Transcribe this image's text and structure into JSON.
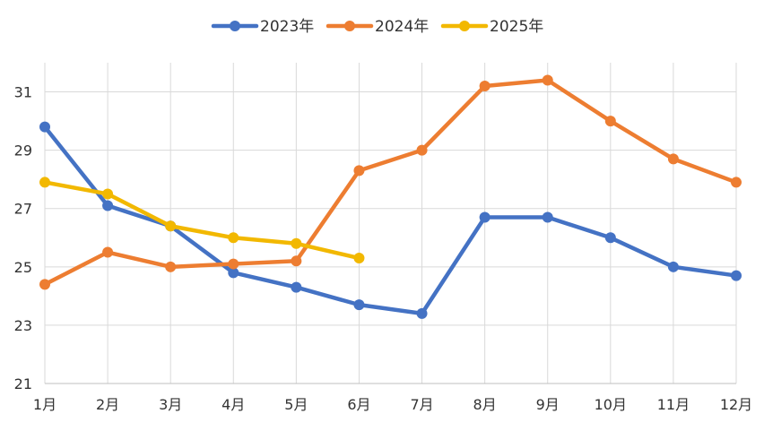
{
  "chart_data": {
    "type": "line",
    "categories": [
      "1月",
      "2月",
      "3月",
      "4月",
      "5月",
      "6月",
      "7月",
      "8月",
      "9月",
      "10月",
      "11月",
      "12月"
    ],
    "series": [
      {
        "name": "2023年",
        "color": "#4472c4",
        "values": [
          29.8,
          27.1,
          26.4,
          24.8,
          24.3,
          23.7,
          23.4,
          26.7,
          26.7,
          26.0,
          25.0,
          24.7
        ]
      },
      {
        "name": "2024年",
        "color": "#ed7d31",
        "values": [
          24.4,
          25.5,
          25.0,
          25.1,
          25.2,
          28.3,
          29.0,
          31.2,
          31.4,
          30.0,
          28.7,
          27.9
        ]
      },
      {
        "name": "2025年",
        "color": "#f2b800",
        "values": [
          27.9,
          27.5,
          26.4,
          26.0,
          25.8,
          25.3,
          null,
          null,
          null,
          null,
          null,
          null
        ]
      }
    ],
    "title": "",
    "xlabel": "",
    "ylabel": "",
    "ylim": [
      21,
      32
    ],
    "yticks": [
      21,
      23,
      25,
      27,
      29,
      31
    ],
    "grid": true,
    "legend_position": "top-center"
  }
}
